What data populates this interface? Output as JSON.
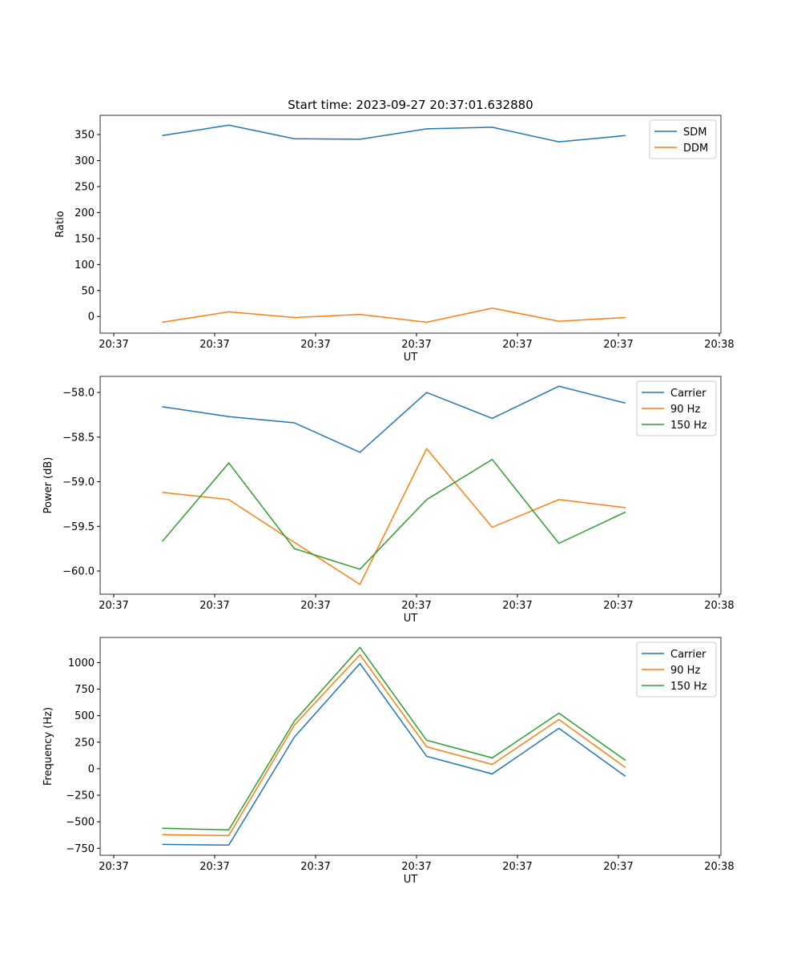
{
  "chart_data": [
    {
      "type": "line",
      "title": "Start time: 2023-09-27 20:37:01.632880",
      "xlabel": "UT",
      "ylabel": "Ratio",
      "x": [
        0.48,
        1.14,
        1.79,
        2.44,
        3.1,
        3.75,
        4.41,
        5.07
      ],
      "xlim": [
        -0.135,
        6.016
      ],
      "xticks": [
        0,
        1,
        2,
        3,
        4,
        5,
        6
      ],
      "xticklabels": [
        "20:37",
        "20:37",
        "20:37",
        "20:37",
        "20:37",
        "20:37",
        "20:38"
      ],
      "ylim": [
        -32,
        387
      ],
      "yticks": [
        0,
        50,
        100,
        150,
        200,
        250,
        300,
        350
      ],
      "yticklabels": [
        "0",
        "50",
        "100",
        "150",
        "200",
        "250",
        "300",
        "350"
      ],
      "legend": "top-right",
      "series": [
        {
          "name": "SDM",
          "color": "#1f77b4",
          "values": [
            348,
            368,
            342,
            341,
            361,
            364,
            336,
            348
          ]
        },
        {
          "name": "DDM",
          "color": "#ff7f0e",
          "values": [
            -11,
            9,
            -2,
            4,
            -11,
            16,
            -9,
            -2
          ]
        }
      ]
    },
    {
      "type": "line",
      "title": "",
      "xlabel": "UT",
      "ylabel": "Power (dB)",
      "x": [
        0.48,
        1.14,
        1.79,
        2.44,
        3.1,
        3.75,
        4.41,
        5.07
      ],
      "xlim": [
        -0.135,
        6.016
      ],
      "xticks": [
        0,
        1,
        2,
        3,
        4,
        5,
        6
      ],
      "xticklabels": [
        "20:37",
        "20:37",
        "20:37",
        "20:37",
        "20:37",
        "20:37",
        "20:38"
      ],
      "ylim": [
        -60.26,
        -57.82
      ],
      "yticks": [
        -60,
        -59.5,
        -59,
        -58.5,
        -58
      ],
      "yticklabels": [
        "−60.0",
        "−59.5",
        "−59.0",
        "−58.5",
        "−58.0"
      ],
      "legend": "top-right",
      "series": [
        {
          "name": "Carrier",
          "color": "#1f77b4",
          "values": [
            -58.16,
            -58.27,
            -58.34,
            -58.67,
            -58.0,
            -58.29,
            -57.93,
            -58.12
          ]
        },
        {
          "name": "90 Hz",
          "color": "#ff7f0e",
          "values": [
            -59.12,
            -59.2,
            -59.68,
            -60.15,
            -58.63,
            -59.51,
            -59.2,
            -59.29
          ]
        },
        {
          "name": "150 Hz",
          "color": "#2ca02c",
          "values": [
            -59.67,
            -58.79,
            -59.75,
            -59.98,
            -59.2,
            -58.75,
            -59.69,
            -59.34
          ]
        }
      ]
    },
    {
      "type": "line",
      "title": "",
      "xlabel": "UT",
      "ylabel": "Frequency (Hz)",
      "x": [
        0.48,
        1.14,
        1.79,
        2.44,
        3.1,
        3.75,
        4.41,
        5.07
      ],
      "xlim": [
        -0.135,
        6.016
      ],
      "xticks": [
        0,
        1,
        2,
        3,
        4,
        5,
        6
      ],
      "xticklabels": [
        "20:37",
        "20:37",
        "20:37",
        "20:37",
        "20:37",
        "20:37",
        "20:38"
      ],
      "ylim": [
        -816,
        1237
      ],
      "yticks": [
        -750,
        -500,
        -250,
        0,
        250,
        500,
        750,
        1000
      ],
      "yticklabels": [
        "−750",
        "−500",
        "−250",
        "0",
        "250",
        "500",
        "750",
        "1000"
      ],
      "legend": "top-right",
      "series": [
        {
          "name": "Carrier",
          "color": "#1f77b4",
          "values": [
            -713,
            -720,
            298,
            992,
            117,
            -49,
            381,
            -72
          ]
        },
        {
          "name": "90 Hz",
          "color": "#ff7f0e",
          "values": [
            -622,
            -630,
            411,
            1075,
            207,
            41,
            464,
            11
          ]
        },
        {
          "name": "150 Hz",
          "color": "#2ca02c",
          "values": [
            -562,
            -577,
            449,
            1143,
            268,
            102,
            524,
            79
          ]
        }
      ]
    }
  ]
}
